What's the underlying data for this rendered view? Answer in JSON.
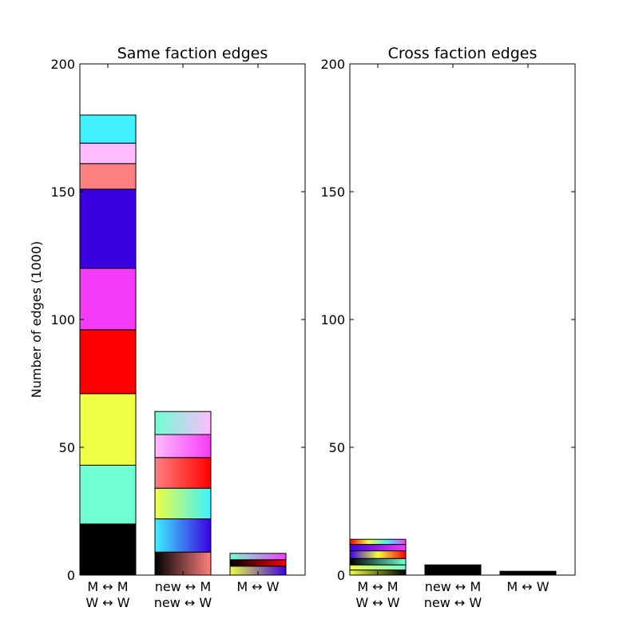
{
  "figure": {
    "ylabel": "Number of edges (1000)"
  },
  "chart_data": [
    {
      "type": "bar",
      "stacked": true,
      "title": "Same faction edges",
      "ylim": [
        0,
        200
      ],
      "yticks": [
        0,
        50,
        100,
        150,
        200
      ],
      "xlabel": "",
      "ylabel": "Number of edges (1000)",
      "categories": [
        {
          "line1": "M ↔ M",
          "line2": "W ↔ W"
        },
        {
          "line1": "new ↔ M",
          "line2": "new ↔ W"
        },
        {
          "line1": "M ↔ W",
          "line2": ""
        }
      ],
      "bars": [
        {
          "segments": [
            {
              "value": 20,
              "colors": [
                "#000000"
              ]
            },
            {
              "value": 23,
              "colors": [
                "#6fffd2"
              ]
            },
            {
              "value": 28,
              "colors": [
                "#eeff44"
              ]
            },
            {
              "value": 25,
              "colors": [
                "#ff0000"
              ]
            },
            {
              "value": 24,
              "colors": [
                "#f43cf8"
              ]
            },
            {
              "value": 31,
              "colors": [
                "#3b00e0"
              ]
            },
            {
              "value": 10,
              "colors": [
                "#ff8080"
              ]
            },
            {
              "value": 8,
              "colors": [
                "#ffbbff"
              ]
            },
            {
              "value": 11,
              "colors": [
                "#3ff0ff"
              ]
            }
          ]
        },
        {
          "segments": [
            {
              "value": 9,
              "colors": [
                "#000000",
                "#ff8080"
              ]
            },
            {
              "value": 13,
              "colors": [
                "#3ff0ff",
                "#3b00e0"
              ]
            },
            {
              "value": 12,
              "colors": [
                "#eeff44",
                "#3ff0ff"
              ]
            },
            {
              "value": 12,
              "colors": [
                "#ff8080",
                "#ff0000"
              ]
            },
            {
              "value": 9,
              "colors": [
                "#ffbbff",
                "#f43cf8"
              ]
            },
            {
              "value": 9,
              "colors": [
                "#6fffd2",
                "#ffbbff"
              ]
            }
          ]
        },
        {
          "segments": [
            {
              "value": 3.5,
              "colors": [
                "#eeff44",
                "#3b00e0"
              ]
            },
            {
              "value": 2.5,
              "colors": [
                "#000000",
                "#ff0000"
              ]
            },
            {
              "value": 2.5,
              "colors": [
                "#6fffd2",
                "#f43cf8"
              ]
            }
          ]
        }
      ]
    },
    {
      "type": "bar",
      "stacked": true,
      "title": "Cross faction edges",
      "ylim": [
        0,
        200
      ],
      "yticks": [
        0,
        50,
        100,
        150,
        200
      ],
      "xlabel": "",
      "ylabel": "",
      "categories": [
        {
          "line1": "M ↔ M",
          "line2": "W ↔ W"
        },
        {
          "line1": "new ↔ M",
          "line2": "new ↔ W"
        },
        {
          "line1": "M ↔ W",
          "line2": ""
        }
      ],
      "bars": [
        {
          "segments": [
            {
              "value": 2,
              "colors": [
                "#eeff44",
                "#000000"
              ]
            },
            {
              "value": 2,
              "colors": [
                "#eeff44",
                "#6fffd2"
              ]
            },
            {
              "value": 2.5,
              "colors": [
                "#000000",
                "#6fffd2"
              ]
            },
            {
              "value": 3,
              "colors": [
                "#3b00e0",
                "#eeff44",
                "#ff0000"
              ]
            },
            {
              "value": 2.5,
              "colors": [
                "#3b00e0",
                "#f43cf8"
              ]
            },
            {
              "value": 2,
              "colors": [
                "#ff0000",
                "#eeff44",
                "#3ff0ff",
                "#f43cf8"
              ]
            }
          ]
        },
        {
          "segments": [
            {
              "value": 4,
              "colors": [
                "#000000"
              ]
            }
          ]
        },
        {
          "segments": [
            {
              "value": 1.5,
              "colors": [
                "#000000"
              ]
            }
          ]
        }
      ]
    }
  ]
}
